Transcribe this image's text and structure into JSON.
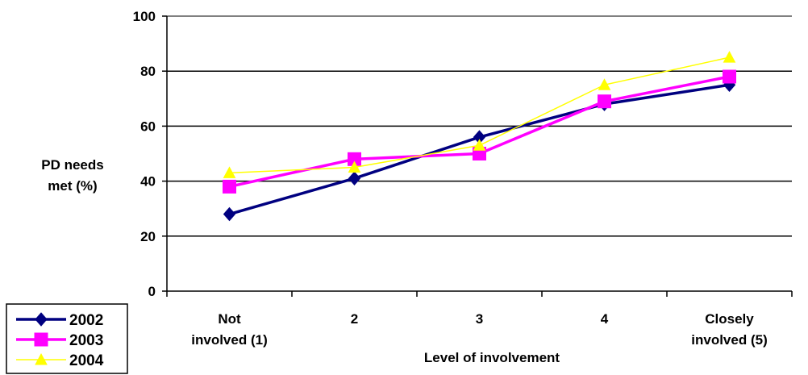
{
  "chart_data": {
    "type": "line",
    "categories": [
      "Not involved (1)",
      "2",
      "3",
      "4",
      "Closely involved (5)"
    ],
    "series": [
      {
        "name": "2002",
        "values": [
          28,
          41,
          56,
          68,
          75
        ],
        "color": "#000080",
        "marker": "diamond"
      },
      {
        "name": "2003",
        "values": [
          38,
          48,
          50,
          69,
          78
        ],
        "color": "#ff00ff",
        "marker": "square"
      },
      {
        "name": "2004",
        "values": [
          43,
          45,
          53,
          75,
          85
        ],
        "color": "#ffff00",
        "marker": "triangle"
      }
    ],
    "xlabel": "Level of involvement",
    "ylabel": "PD needs met (%)",
    "ylim": [
      0,
      100
    ],
    "yticks": [
      0,
      20,
      40,
      60,
      80,
      100
    ],
    "grid": true,
    "legend_position": "bottom-left"
  }
}
